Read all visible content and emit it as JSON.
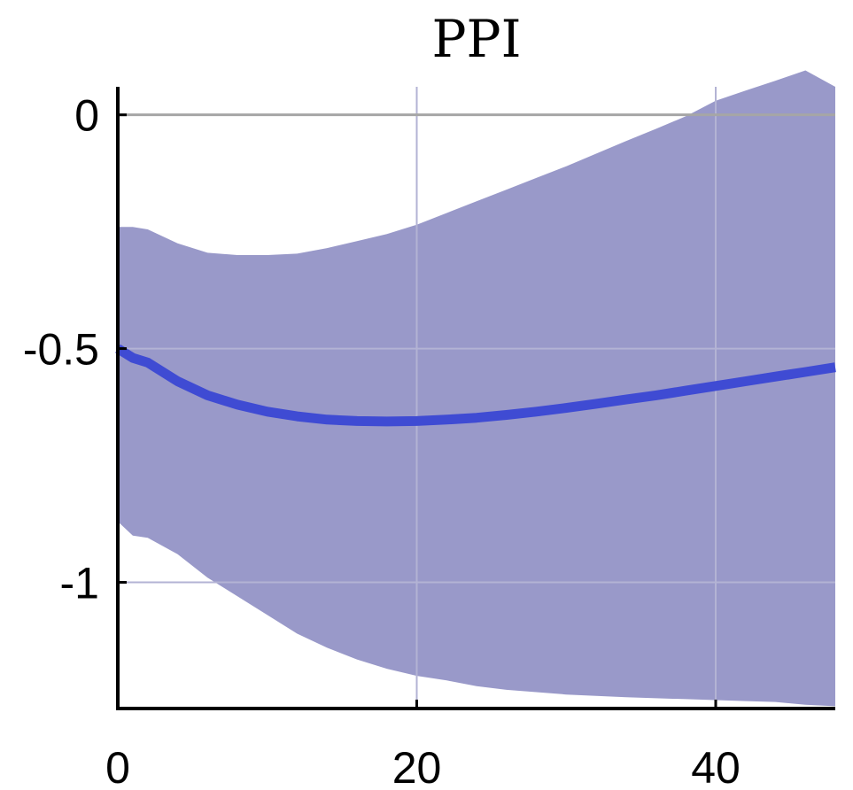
{
  "chart_data": {
    "type": "area",
    "title": "PPI",
    "xlabel": "",
    "ylabel": "",
    "xlim": [
      0,
      48
    ],
    "ylim": [
      -1.27,
      0.06
    ],
    "x_ticks": [
      0,
      20,
      40
    ],
    "y_ticks": [
      0,
      -0.5,
      -1
    ],
    "x_tick_labels": [
      "0",
      "20",
      "40"
    ],
    "y_tick_labels": [
      "0",
      "-0.5",
      "-1"
    ],
    "reference_line": 0,
    "grid": true,
    "colors": {
      "band": "#9999c9",
      "line": "#3f4bd3",
      "zero_line": "#a6a6a6"
    },
    "x": [
      0,
      1,
      2,
      4,
      6,
      8,
      10,
      12,
      14,
      16,
      18,
      20,
      22,
      24,
      26,
      28,
      30,
      32,
      34,
      36,
      38,
      40,
      42,
      44,
      46,
      48
    ],
    "series": [
      {
        "values": [
          -0.5,
          -0.52,
          -0.53,
          -0.57,
          -0.6,
          -0.62,
          -0.635,
          -0.645,
          -0.652,
          -0.655,
          -0.656,
          -0.655,
          -0.652,
          -0.648,
          -0.642,
          -0.635,
          -0.627,
          -0.618,
          -0.609,
          -0.6,
          -0.59,
          -0.58,
          -0.57,
          -0.56,
          -0.55,
          -0.54
        ]
      }
    ],
    "band": {
      "upper": [
        -0.24,
        -0.24,
        -0.245,
        -0.275,
        -0.295,
        -0.3,
        -0.3,
        -0.297,
        -0.285,
        -0.27,
        -0.255,
        -0.235,
        -0.21,
        -0.185,
        -0.16,
        -0.135,
        -0.11,
        -0.083,
        -0.056,
        -0.03,
        -0.003,
        0.03,
        0.052,
        0.073,
        0.095,
        0.06
      ],
      "lower": [
        -0.87,
        -0.9,
        -0.905,
        -0.94,
        -0.99,
        -1.03,
        -1.07,
        -1.11,
        -1.14,
        -1.165,
        -1.185,
        -1.2,
        -1.21,
        -1.222,
        -1.23,
        -1.235,
        -1.24,
        -1.243,
        -1.246,
        -1.248,
        -1.25,
        -1.252,
        -1.254,
        -1.256,
        -1.262,
        -1.265
      ]
    }
  }
}
